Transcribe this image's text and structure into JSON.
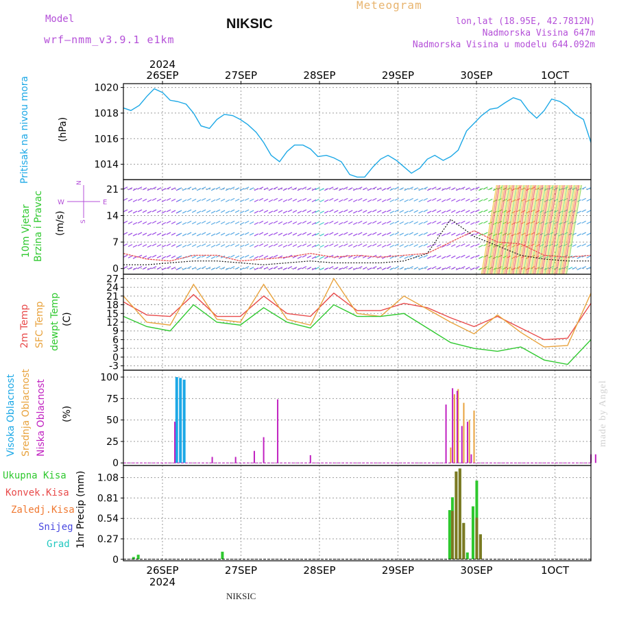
{
  "header": {
    "model_label": "Model",
    "model_name": "wrf–nmm_v3.9.1  e1km",
    "station": "NIKSIC",
    "meteogram": "Meteogram",
    "coords": "lon,lat (18.95E, 42.7812N)",
    "elevation": "Nadmorska Visina 647m",
    "model_elevation": "Nadmorska Visina u modelu 644.092m",
    "footer_station": "NIKSIC",
    "watermark": "made by Angel"
  },
  "colors": {
    "pressure": "#1ca8e6",
    "temp_2m": "#e84a4a",
    "temp_sfc": "#e8a23c",
    "dewpt": "#2ec82e",
    "cloud_high": "#1ca8e6",
    "cloud_mid": "#e8a23c",
    "cloud_low": "#c020c0",
    "precip_total": "#2ec82e",
    "precip_conv": "#e84a4a",
    "header_purple": "#b44fd8",
    "header_orange": "#e8b46e"
  },
  "chart_data": [
    {
      "panel": "pressure",
      "type": "line",
      "axis_labels": {
        "side": "Pritisak na nivou mora",
        "unit": "(hPa)"
      },
      "x_ticks_top": [
        "26SEP",
        "27SEP",
        "28SEP",
        "29SEP",
        "30SEP",
        "1OCT"
      ],
      "year_top": "2024",
      "yticks": [
        1014,
        1016,
        1018,
        1020
      ],
      "ylim": [
        1012.8,
        1020.3
      ],
      "x": [
        0.0,
        0.08,
        0.17,
        0.25,
        0.33,
        0.42,
        0.5,
        0.58,
        0.67,
        0.75,
        0.83,
        0.92,
        1.0,
        1.08,
        1.17,
        1.25,
        1.33,
        1.42,
        1.5,
        1.58,
        1.67,
        1.75,
        1.83,
        1.92,
        2.0,
        2.08,
        2.17,
        2.25,
        2.33,
        2.42,
        2.5,
        2.58,
        2.67,
        2.75,
        2.83,
        2.92,
        3.0,
        3.08,
        3.17,
        3.25,
        3.33,
        3.42,
        3.5,
        3.58,
        3.67,
        3.75,
        3.83,
        3.92,
        4.0,
        4.08,
        4.17,
        4.25,
        4.33,
        4.42,
        4.5,
        4.58,
        4.67,
        4.75,
        4.83,
        4.92,
        5.0
      ],
      "values": [
        1018.4,
        1018.2,
        1018.6,
        1019.3,
        1019.9,
        1019.6,
        1019.0,
        1018.9,
        1018.7,
        1018.0,
        1017.0,
        1016.8,
        1017.5,
        1017.9,
        1017.8,
        1017.5,
        1017.1,
        1016.5,
        1015.7,
        1014.7,
        1014.2,
        1015.0,
        1015.5,
        1015.5,
        1015.2,
        1014.6,
        1014.7,
        1014.5,
        1014.2,
        1013.2,
        1013.0,
        1013.0,
        1013.8,
        1014.4,
        1014.7,
        1014.3,
        1013.8,
        1013.3,
        1013.7,
        1014.4,
        1014.7,
        1014.3,
        1014.6,
        1015.1,
        1016.6,
        1017.2,
        1017.8,
        1018.3,
        1018.4,
        1018.8,
        1019.2,
        1019.0,
        1018.2,
        1017.6,
        1018.2,
        1019.1,
        1018.9,
        1018.5,
        1017.9,
        1017.5,
        1015.7
      ]
    },
    {
      "panel": "wind",
      "type": "area",
      "axis_labels": {
        "side": "10m Vjetar Brzina i Pravac",
        "unit": "(m/s)"
      },
      "compass": {
        "n": "N",
        "e": "E",
        "w": "W",
        "s": "S"
      },
      "yticks": [
        0,
        7,
        14,
        21
      ],
      "ylim": [
        -1.5,
        23.5
      ],
      "x": [
        0.0,
        0.25,
        0.5,
        0.75,
        1.0,
        1.25,
        1.5,
        1.75,
        2.0,
        2.25,
        2.5,
        2.75,
        3.0,
        3.25,
        3.5,
        3.75,
        4.0,
        4.25,
        4.5,
        4.75,
        5.0
      ],
      "series": [
        {
          "values": [
            4.0,
            2.5,
            2.0,
            3.5,
            3.5,
            2.0,
            2.5,
            3.0,
            4.0,
            3.0,
            3.5,
            3.0,
            3.5,
            4.0,
            7.0,
            10.0,
            7.0,
            6.5,
            3.5,
            3.0,
            3.5
          ]
        },
        {
          "values": [
            1.0,
            1.0,
            1.5,
            2.0,
            2.0,
            1.5,
            1.0,
            1.5,
            2.0,
            1.5,
            1.5,
            1.5,
            2.0,
            4.0,
            13.0,
            8.5,
            6.0,
            3.5,
            2.5,
            2.0,
            2.0
          ]
        }
      ]
    },
    {
      "panel": "temperature",
      "type": "line",
      "axis_labels": {
        "t2m": "2m Temp",
        "sfc": "SFC Temp",
        "dew": "dewpt Temp",
        "unit": "(C)"
      },
      "yticks": [
        -3,
        0,
        3,
        6,
        9,
        12,
        15,
        18,
        21,
        24,
        27
      ],
      "ylim": [
        -4.5,
        28.5
      ],
      "x": [
        0.0,
        0.25,
        0.5,
        0.75,
        1.0,
        1.25,
        1.5,
        1.75,
        2.0,
        2.25,
        2.5,
        2.75,
        3.0,
        3.25,
        3.5,
        3.75,
        4.0,
        4.25,
        4.5,
        4.75,
        5.0
      ],
      "series": [
        {
          "name": "2m Temp",
          "values": [
            19.0,
            14.5,
            14.0,
            21.5,
            14.0,
            14.0,
            21.0,
            15.0,
            14.0,
            22.0,
            16.0,
            16.0,
            18.5,
            17.0,
            13.5,
            10.5,
            14.0,
            10.0,
            6.0,
            6.5,
            18.5
          ]
        },
        {
          "name": "SFC Temp",
          "values": [
            21.0,
            12.0,
            11.0,
            25.0,
            13.0,
            12.0,
            25.0,
            13.0,
            11.0,
            27.0,
            15.0,
            14.0,
            21.0,
            16.5,
            12.0,
            8.0,
            14.5,
            8.5,
            3.5,
            4.0,
            22.0
          ]
        },
        {
          "name": "dewpt Temp",
          "values": [
            14.0,
            10.5,
            9.0,
            18.0,
            12.0,
            11.0,
            17.0,
            12.0,
            10.0,
            18.0,
            14.0,
            14.0,
            15.0,
            10.0,
            5.0,
            3.0,
            2.0,
            3.5,
            -1.0,
            -2.5,
            6.0
          ]
        }
      ]
    },
    {
      "panel": "cloud",
      "type": "bar",
      "axis_labels": {
        "high": "Visoka Oblacnost",
        "mid": "Srednja Oblacnost",
        "low": "Niska Oblacnost",
        "unit": "(%)"
      },
      "yticks": [
        0,
        25,
        50,
        75,
        100
      ],
      "ylim": [
        -3,
        108
      ],
      "series": [
        {
          "name": "Visoka Oblacnost",
          "x": [
            0.07,
            0.11,
            0.15
          ],
          "values": [
            100,
            99,
            97
          ]
        },
        {
          "name": "Srednja Oblacnost",
          "x": [
            3.0,
            3.04,
            3.08,
            3.14,
            3.2,
            3.25
          ],
          "values": [
            18,
            80,
            86,
            70,
            50,
            61
          ]
        },
        {
          "name": "Niska Oblacnost",
          "x": [
            0.05,
            0.45,
            0.7,
            0.9,
            1.0,
            1.15,
            1.5,
            2.95,
            3.02,
            3.07,
            3.12,
            3.18,
            3.22,
            4.5,
            4.55
          ],
          "values": [
            48,
            7,
            7,
            14,
            30,
            74,
            9,
            68,
            87,
            84,
            43,
            48,
            10,
            10,
            10
          ]
        }
      ]
    },
    {
      "panel": "precip",
      "type": "bar",
      "axis_labels": {
        "unit": "1hr Precip (mm)"
      },
      "legend": [
        "Ukupna Kisa",
        "Konvek.Kisa",
        "Zaledj.Kisa",
        "Snijeg",
        "Grad"
      ],
      "x_ticks_bottom": [
        "26SEP",
        "27SEP",
        "28SEP",
        "29SEP",
        "30SEP",
        "1OCT"
      ],
      "year_bottom": "2024",
      "yticks": [
        0,
        0.27,
        0.54,
        0.81,
        1.08
      ],
      "ylim": [
        -0.02,
        1.24
      ],
      "series": [
        {
          "name": "Ukupna Kisa",
          "x": [
            -0.45,
            -0.4,
            0.5,
            2.93,
            2.96,
            3.0,
            3.04,
            3.08,
            3.12,
            3.18,
            3.22,
            3.26
          ],
          "values": [
            0.03,
            0.06,
            0.1,
            0.65,
            0.82,
            1.16,
            1.2,
            0.48,
            0.09,
            0.7,
            1.04,
            0.33
          ]
        },
        {
          "name": "Konvek.Kisa",
          "x": [
            2.96,
            3.0,
            3.04,
            3.08,
            3.22,
            3.26
          ],
          "values": [
            0.64,
            1.16,
            1.2,
            0.48,
            0.55,
            0.33
          ]
        }
      ]
    }
  ]
}
